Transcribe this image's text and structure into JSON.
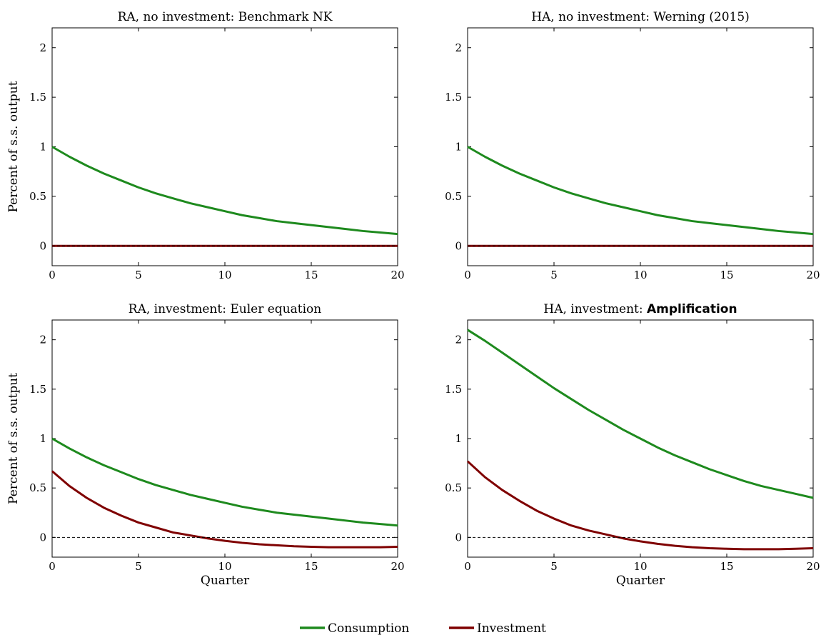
{
  "figure": {
    "legend": [
      {
        "name": "Consumption",
        "color": "#1e8a1e"
      },
      {
        "name": "Investment",
        "color": "#7f0000"
      }
    ],
    "legend_placement": "bottom-center",
    "zero_line_style": "dashed black"
  },
  "chart_data": [
    {
      "type": "line",
      "title": "RA, no investment: Benchmark NK",
      "title_bold": "",
      "xlabel": "",
      "ylabel": "Percent of s.s. output",
      "xlim": [
        0,
        20
      ],
      "ylim": [
        -0.2,
        2.2
      ],
      "xticks": [
        0,
        5,
        10,
        15,
        20
      ],
      "yticks": [
        0,
        0.5,
        1,
        1.5,
        2
      ],
      "x": [
        0,
        1,
        2,
        3,
        4,
        5,
        6,
        7,
        8,
        9,
        10,
        11,
        12,
        13,
        14,
        15,
        16,
        17,
        18,
        19,
        20
      ],
      "series": [
        {
          "name": "Consumption",
          "values": [
            1.0,
            0.9,
            0.81,
            0.73,
            0.66,
            0.59,
            0.53,
            0.48,
            0.43,
            0.39,
            0.35,
            0.31,
            0.28,
            0.25,
            0.23,
            0.21,
            0.19,
            0.17,
            0.15,
            0.135,
            0.12
          ]
        },
        {
          "name": "Investment",
          "values": [
            0,
            0,
            0,
            0,
            0,
            0,
            0,
            0,
            0,
            0,
            0,
            0,
            0,
            0,
            0,
            0,
            0,
            0,
            0,
            0,
            0
          ]
        }
      ]
    },
    {
      "type": "line",
      "title": "HA, no investment: Werning (2015)",
      "title_bold": "",
      "xlabel": "",
      "ylabel": "",
      "xlim": [
        0,
        20
      ],
      "ylim": [
        -0.2,
        2.2
      ],
      "xticks": [
        0,
        5,
        10,
        15,
        20
      ],
      "yticks": [
        0,
        0.5,
        1,
        1.5,
        2
      ],
      "x": [
        0,
        1,
        2,
        3,
        4,
        5,
        6,
        7,
        8,
        9,
        10,
        11,
        12,
        13,
        14,
        15,
        16,
        17,
        18,
        19,
        20
      ],
      "series": [
        {
          "name": "Consumption",
          "values": [
            1.0,
            0.9,
            0.81,
            0.73,
            0.66,
            0.59,
            0.53,
            0.48,
            0.43,
            0.39,
            0.35,
            0.31,
            0.28,
            0.25,
            0.23,
            0.21,
            0.19,
            0.17,
            0.15,
            0.135,
            0.12
          ]
        },
        {
          "name": "Investment",
          "values": [
            0,
            0,
            0,
            0,
            0,
            0,
            0,
            0,
            0,
            0,
            0,
            0,
            0,
            0,
            0,
            0,
            0,
            0,
            0,
            0,
            0
          ]
        }
      ]
    },
    {
      "type": "line",
      "title": "RA, investment: Euler equation",
      "title_bold": "",
      "xlabel": "Quarter",
      "ylabel": "Percent of s.s. output",
      "xlim": [
        0,
        20
      ],
      "ylim": [
        -0.2,
        2.2
      ],
      "xticks": [
        0,
        5,
        10,
        15,
        20
      ],
      "yticks": [
        0,
        0.5,
        1,
        1.5,
        2
      ],
      "x": [
        0,
        1,
        2,
        3,
        4,
        5,
        6,
        7,
        8,
        9,
        10,
        11,
        12,
        13,
        14,
        15,
        16,
        17,
        18,
        19,
        20
      ],
      "series": [
        {
          "name": "Consumption",
          "values": [
            1.0,
            0.9,
            0.81,
            0.73,
            0.66,
            0.59,
            0.53,
            0.48,
            0.43,
            0.39,
            0.35,
            0.31,
            0.28,
            0.25,
            0.23,
            0.21,
            0.19,
            0.17,
            0.15,
            0.135,
            0.12
          ]
        },
        {
          "name": "Investment",
          "values": [
            0.67,
            0.52,
            0.4,
            0.3,
            0.22,
            0.15,
            0.1,
            0.05,
            0.02,
            -0.01,
            -0.035,
            -0.055,
            -0.07,
            -0.08,
            -0.09,
            -0.095,
            -0.1,
            -0.1,
            -0.1,
            -0.1,
            -0.095
          ]
        }
      ]
    },
    {
      "type": "line",
      "title": "HA, investment: ",
      "title_bold": "Amplification",
      "xlabel": "Quarter",
      "ylabel": "",
      "xlim": [
        0,
        20
      ],
      "ylim": [
        -0.2,
        2.2
      ],
      "xticks": [
        0,
        5,
        10,
        15,
        20
      ],
      "yticks": [
        0,
        0.5,
        1,
        1.5,
        2
      ],
      "x": [
        0,
        1,
        2,
        3,
        4,
        5,
        6,
        7,
        8,
        9,
        10,
        11,
        12,
        13,
        14,
        15,
        16,
        17,
        18,
        19,
        20
      ],
      "series": [
        {
          "name": "Consumption",
          "values": [
            2.1,
            1.99,
            1.87,
            1.75,
            1.63,
            1.51,
            1.4,
            1.29,
            1.19,
            1.09,
            1.0,
            0.91,
            0.83,
            0.76,
            0.69,
            0.63,
            0.57,
            0.52,
            0.48,
            0.44,
            0.4
          ]
        },
        {
          "name": "Investment",
          "values": [
            0.77,
            0.61,
            0.48,
            0.37,
            0.27,
            0.19,
            0.12,
            0.07,
            0.03,
            -0.01,
            -0.04,
            -0.065,
            -0.085,
            -0.1,
            -0.11,
            -0.115,
            -0.12,
            -0.12,
            -0.12,
            -0.115,
            -0.11
          ]
        }
      ]
    }
  ]
}
